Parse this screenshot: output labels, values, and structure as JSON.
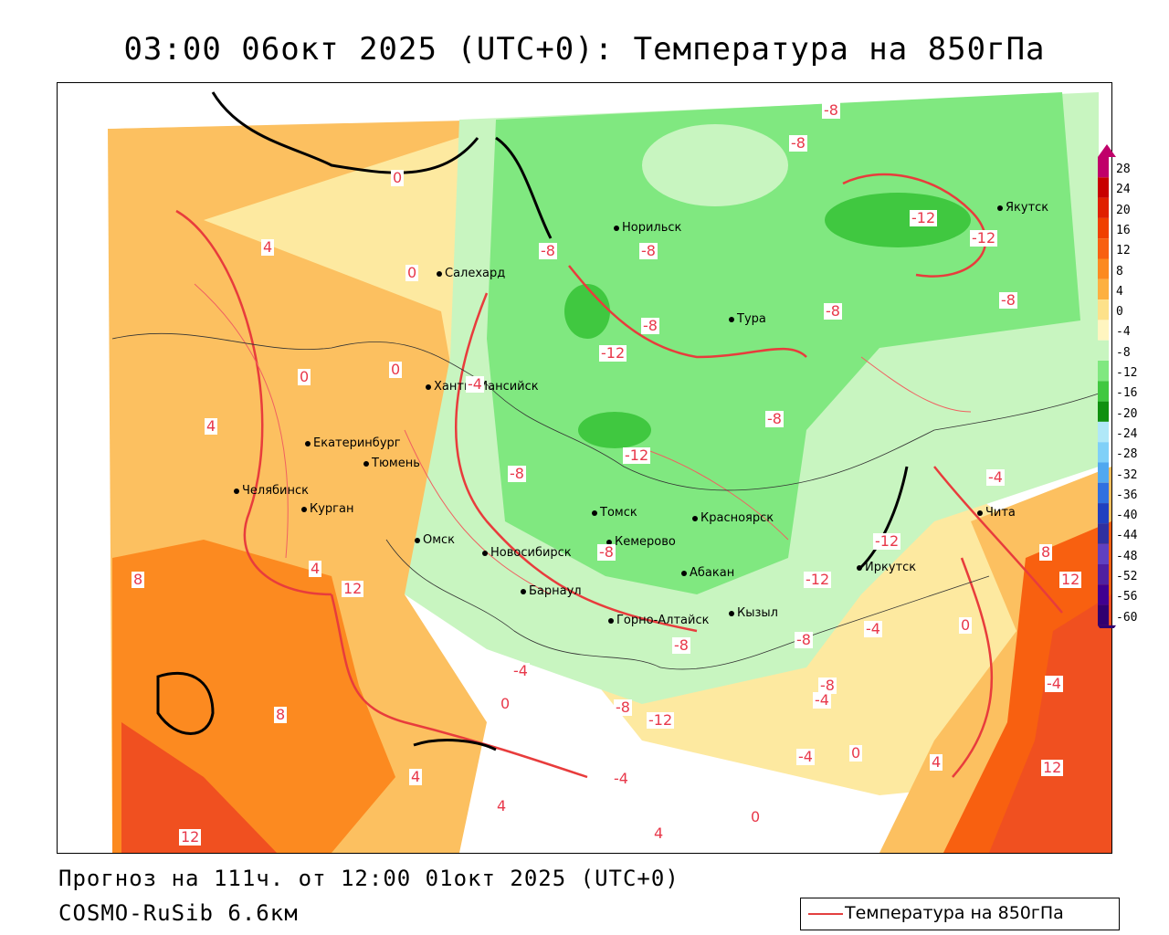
{
  "title": "03:00 06окт 2025 (UTC+0): Температура на 850гПа",
  "footer": {
    "forecast": "Прогноз на 111ч. от 12:00 01окт 2025 (UTC+0)",
    "model": "COSMO-RuSib 6.6км"
  },
  "legend_key": {
    "label": "Температура на 850гПа",
    "color": "#e34040"
  },
  "colorbar": {
    "levels": [
      "28",
      "24",
      "20",
      "16",
      "12",
      "8",
      "4",
      "0",
      "-4",
      "-8",
      "-12",
      "-16",
      "-20",
      "-24",
      "-28",
      "-32",
      "-36",
      "-40",
      "-44",
      "-48",
      "-52",
      "-56",
      "-60"
    ],
    "colors": [
      "#c0006a",
      "#c80000",
      "#e02000",
      "#f04000",
      "#f86010",
      "#fc8a20",
      "#fdb040",
      "#fde18a",
      "#fff5c0",
      "#c8f5c0",
      "#80e880",
      "#40c840",
      "#109010",
      "#b0e8f8",
      "#80d0f8",
      "#50a8f0",
      "#3070e0",
      "#2040c0",
      "#3030a0",
      "#6040c0",
      "#5020a0",
      "#400090",
      "#300070"
    ]
  },
  "cities": [
    {
      "name": "Якутск"
    },
    {
      "name": "Норильск"
    },
    {
      "name": "Салехард"
    },
    {
      "name": "Тура"
    },
    {
      "name": "Ханты-Мансийск"
    },
    {
      "name": "Екатеринбург"
    },
    {
      "name": "Тюмень"
    },
    {
      "name": "Челябинск"
    },
    {
      "name": "Курган"
    },
    {
      "name": "Омск"
    },
    {
      "name": "Новосибирск"
    },
    {
      "name": "Томск"
    },
    {
      "name": "Кемерово"
    },
    {
      "name": "Красноярск"
    },
    {
      "name": "Абакан"
    },
    {
      "name": "Барнаул"
    },
    {
      "name": "Горно-Алтайск"
    },
    {
      "name": "Кызыл"
    },
    {
      "name": "Иркутск"
    },
    {
      "name": "Чита"
    }
  ],
  "isoline_labels": [
    "-8",
    "-8",
    "-12",
    "-12",
    "-8",
    "-8",
    "-8",
    "-8",
    "-12",
    "-8",
    "-12",
    "-8",
    "-8",
    "-8",
    "-12",
    "-12",
    "-4",
    "-4",
    "-8",
    "-8",
    "-12",
    "-8",
    "-4",
    "-4",
    "-8",
    "-4",
    "-4",
    "0",
    "0",
    "0",
    "0",
    "4",
    "4",
    "4",
    "4",
    "4",
    "4",
    "8",
    "8",
    "8",
    "12",
    "12",
    "12",
    "12",
    "0",
    "0",
    "0",
    "-4",
    "-4",
    "4",
    "0"
  ]
}
